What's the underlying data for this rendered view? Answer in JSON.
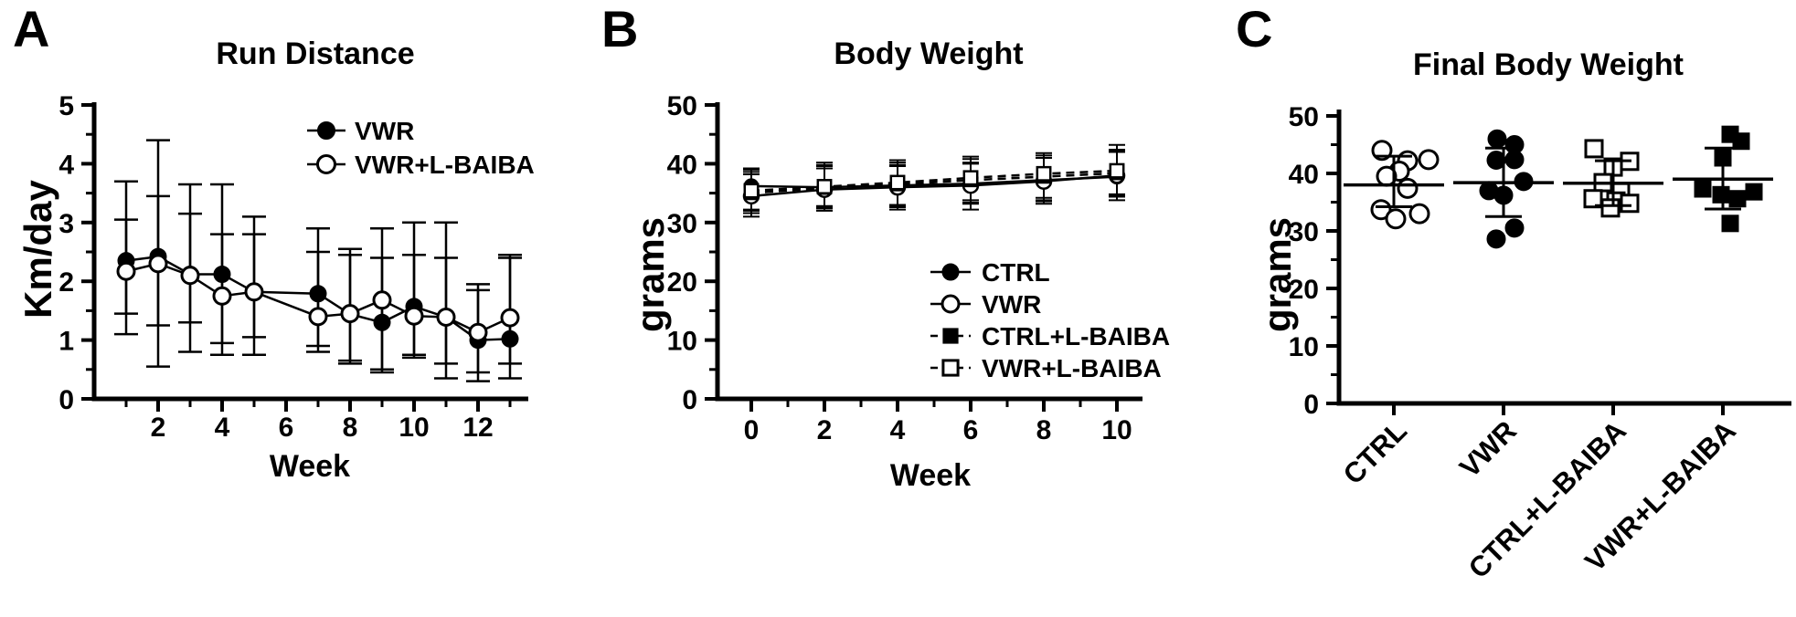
{
  "figure": {
    "background": "#ffffff",
    "ink_color": "#000000"
  },
  "chart_data": [
    {
      "panel_letter": "A",
      "type": "line",
      "title": "Run Distance",
      "xlabel": "Week",
      "ylabel": "Km/day",
      "ylim": [
        0,
        5
      ],
      "yticks": [
        0,
        1,
        2,
        3,
        4,
        5
      ],
      "yminor": [
        0.5,
        1.5,
        2.5,
        3.5,
        4.5
      ],
      "xticks_labeled": [
        2,
        4,
        6,
        8,
        10,
        12
      ],
      "xticks_minor": [
        1,
        3,
        5,
        7,
        9,
        11,
        13
      ],
      "grid": false,
      "legend_position": "top-right-inside",
      "x": [
        1,
        2,
        3,
        4,
        5,
        7,
        8,
        9,
        10,
        11,
        12,
        13
      ],
      "series": [
        {
          "name": "VWR",
          "marker": "circle-filled",
          "dash": "solid",
          "y": [
            2.35,
            2.42,
            2.12,
            2.12,
            1.82,
            1.79,
            1.44,
            1.3,
            1.57,
            1.39,
            1.0,
            1.02
          ],
          "err_lo": [
            1.45,
            0.55,
            0.8,
            0.95,
            0.75,
            0.9,
            0.65,
            0.45,
            0.7,
            0.6,
            0.3,
            0.6
          ],
          "err_hi": [
            3.7,
            4.4,
            3.65,
            3.65,
            3.1,
            2.9,
            2.55,
            2.9,
            3.0,
            2.4,
            1.85,
            2.4
          ]
        },
        {
          "name": "VWR+L-BAIBA",
          "marker": "circle-open",
          "dash": "solid",
          "y": [
            2.17,
            2.3,
            2.1,
            1.75,
            1.82,
            1.4,
            1.45,
            1.68,
            1.41,
            1.39,
            1.13,
            1.38
          ],
          "err_lo": [
            1.1,
            1.25,
            1.3,
            0.75,
            1.05,
            0.8,
            0.6,
            0.5,
            0.75,
            0.35,
            0.45,
            0.35
          ],
          "err_hi": [
            3.05,
            3.45,
            3.15,
            2.8,
            2.8,
            2.5,
            2.45,
            2.4,
            2.45,
            3.0,
            1.95,
            2.45
          ]
        }
      ]
    },
    {
      "panel_letter": "B",
      "type": "line",
      "title": "Body Weight",
      "xlabel": "Week",
      "ylabel": "grams",
      "ylim": [
        0,
        50
      ],
      "yticks": [
        0,
        10,
        20,
        30,
        40,
        50
      ],
      "yminor": [
        5,
        15,
        25,
        35,
        45
      ],
      "xticks_labeled": [
        0,
        2,
        4,
        6,
        8,
        10
      ],
      "xticks_minor": [
        1,
        3,
        5,
        7,
        9
      ],
      "grid": false,
      "legend_position": "bottom-right-inside",
      "x": [
        0,
        2,
        4,
        6,
        8,
        10
      ],
      "series": [
        {
          "name": "CTRL",
          "marker": "circle-filled",
          "dash": "solid",
          "y": [
            36.2,
            36.0,
            36.3,
            36.6,
            37.2,
            37.8
          ],
          "err_lo": [
            32.2,
            32.8,
            32.8,
            33.2,
            33.8,
            34.8
          ],
          "err_hi": [
            39.2,
            39.6,
            39.8,
            40.2,
            41.0,
            42.0
          ]
        },
        {
          "name": "VWR",
          "marker": "circle-open",
          "dash": "solid",
          "y": [
            34.5,
            35.6,
            36.0,
            36.3,
            37.0,
            38.0
          ],
          "err_lo": [
            31.0,
            32.0,
            32.2,
            32.2,
            33.2,
            33.8
          ],
          "err_hi": [
            38.2,
            39.2,
            39.6,
            40.0,
            41.0,
            42.2
          ]
        },
        {
          "name": "CTRL+L-BAIBA",
          "marker": "square-filled",
          "dash": "dashed",
          "y": [
            35.0,
            35.9,
            36.5,
            37.2,
            37.8,
            38.4
          ],
          "err_lo": [
            31.6,
            32.4,
            32.6,
            33.4,
            33.6,
            34.4
          ],
          "err_hi": [
            38.6,
            39.8,
            40.2,
            40.8,
            41.4,
            42.4
          ]
        },
        {
          "name": "VWR+L-BAIBA",
          "marker": "square-open",
          "dash": "dashed",
          "y": [
            35.4,
            36.1,
            36.8,
            37.6,
            38.3,
            38.8
          ],
          "err_lo": [
            32.0,
            32.6,
            33.0,
            33.8,
            34.2,
            34.6
          ],
          "err_hi": [
            39.0,
            40.2,
            40.6,
            41.2,
            41.8,
            43.2
          ]
        }
      ]
    },
    {
      "panel_letter": "C",
      "type": "scatter",
      "title": "Final Body Weight",
      "xlabel": "",
      "ylabel": "grams",
      "ylim": [
        0,
        50
      ],
      "yticks": [
        0,
        10,
        20,
        30,
        40,
        50
      ],
      "yminor": [
        5,
        15,
        25,
        35,
        45
      ],
      "grid": false,
      "categories": [
        "CTRL",
        "VWR",
        "CTRL+L-BAIBA",
        "VWR+L-BAIBA"
      ],
      "groups": [
        {
          "name": "CTRL",
          "marker": "circle-open",
          "mean": 38.0,
          "sd_hi": 43.0,
          "sd_lo": 34.2,
          "points": [
            [
              -13,
              44.0
            ],
            [
              15,
              42.2
            ],
            [
              38,
              42.4
            ],
            [
              6,
              40.4
            ],
            [
              -8,
              39.5
            ],
            [
              15,
              37.4
            ],
            [
              -14,
              33.7
            ],
            [
              28,
              33.0
            ],
            [
              2,
              32.1
            ]
          ]
        },
        {
          "name": "VWR",
          "marker": "circle-filled",
          "mean": 38.4,
          "sd_hi": 44.4,
          "sd_lo": 32.5,
          "points": [
            [
              -7,
              46.0
            ],
            [
              12,
              45.0
            ],
            [
              -8,
              42.3
            ],
            [
              12,
              42.4
            ],
            [
              22,
              38.6
            ],
            [
              -16,
              37.0
            ],
            [
              0,
              36.2
            ],
            [
              12,
              30.5
            ],
            [
              -8,
              28.6
            ]
          ]
        },
        {
          "name": "CTRL+L-BAIBA",
          "marker": "square-open",
          "mean": 38.3,
          "sd_hi": 42.2,
          "sd_lo": 34.4,
          "points": [
            [
              -21,
              44.3
            ],
            [
              18,
              42.1
            ],
            [
              0,
              41.1
            ],
            [
              -11,
              38.4
            ],
            [
              8,
              36.8
            ],
            [
              -22,
              35.6
            ],
            [
              3,
              35.2
            ],
            [
              18,
              34.8
            ],
            [
              -3,
              34.0
            ]
          ]
        },
        {
          "name": "VWR+L-BAIBA",
          "marker": "square-filled",
          "mean": 39.0,
          "sd_hi": 44.4,
          "sd_lo": 33.8,
          "points": [
            [
              8,
              46.8
            ],
            [
              20,
              45.6
            ],
            [
              0,
              42.7
            ],
            [
              -22,
              37.3
            ],
            [
              -2,
              36.3
            ],
            [
              16,
              35.6
            ],
            [
              34,
              36.8
            ],
            [
              8,
              31.3
            ]
          ]
        }
      ]
    }
  ]
}
